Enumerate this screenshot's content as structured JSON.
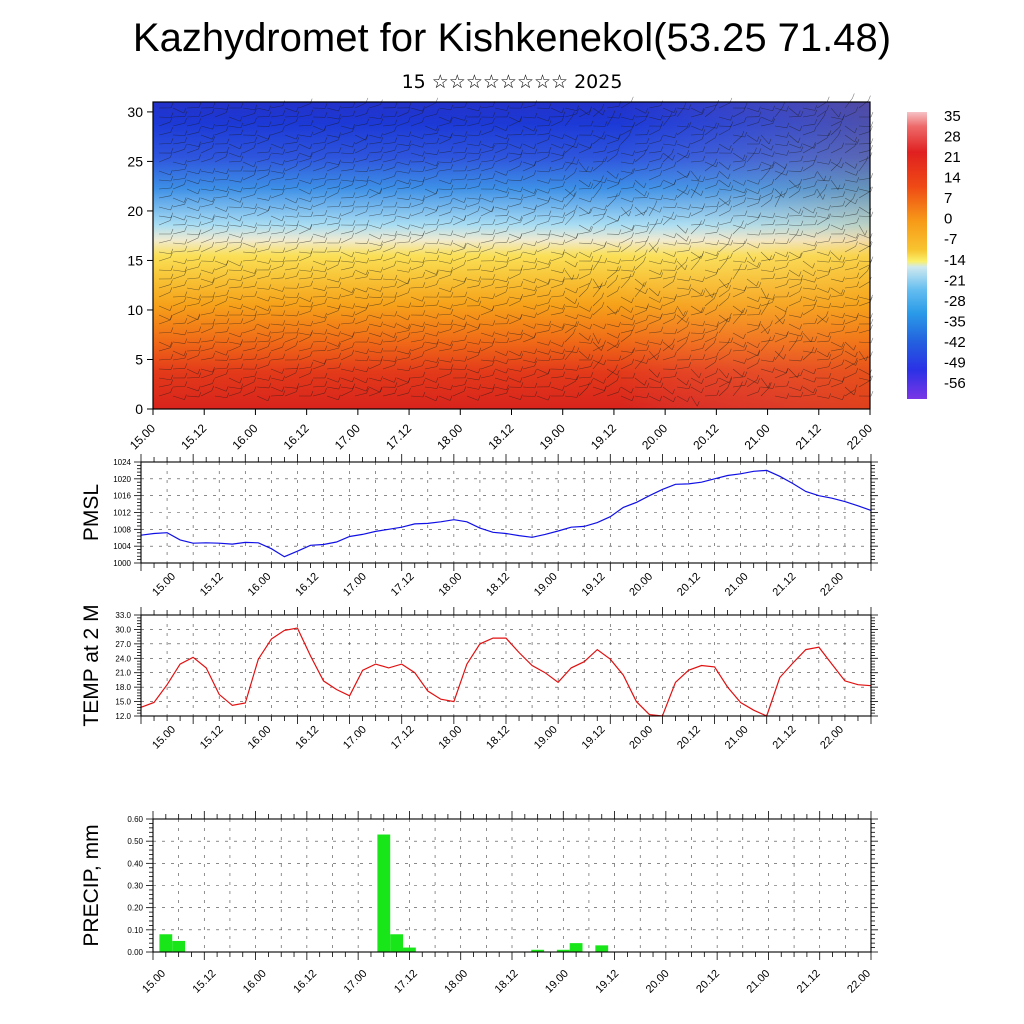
{
  "header": {
    "title": "Kazhydromet for Kishkenekol(53.25 71.48)",
    "subtitle": "15 ☆☆☆☆☆☆☆☆ 2025"
  },
  "chart_data": [
    {
      "type": "heatmap",
      "name": "cross-section",
      "x_tick_labels": [
        "15.00",
        "15.12",
        "16.00",
        "16.12",
        "17.00",
        "17.12",
        "18.00",
        "18.12",
        "19.00",
        "19.12",
        "20.00",
        "20.12",
        "21.00",
        "21.12",
        "22.00"
      ],
      "y_tick_labels": [
        "0",
        "5",
        "10",
        "15",
        "20",
        "25",
        "30"
      ],
      "ylim": [
        0,
        31
      ],
      "legend_labels": [
        "35",
        "28",
        "21",
        "14",
        "7",
        "0",
        "-7",
        "-14",
        "-21",
        "-28",
        "-35",
        "-42",
        "-49",
        "-56"
      ],
      "legend_placement": "right",
      "colors": {
        "hot": "#e02a1e",
        "warm": "#f6a21a",
        "mild": "#fae057",
        "cool": "#a9ddf3",
        "cold": "#2855db",
        "coldest": "#6a2fe6"
      }
    },
    {
      "type": "line",
      "name": "pmsl",
      "ylabel": "PMSL",
      "y_tick_labels": [
        "1000",
        "1004",
        "1008",
        "1012",
        "1016",
        "1020",
        "1024"
      ],
      "ylim": [
        1000,
        1024
      ],
      "x_tick_labels": [
        "15.00",
        "15.12",
        "16.00",
        "16.12",
        "17.00",
        "17.12",
        "18.00",
        "18.12",
        "19.00",
        "19.12",
        "20.00",
        "20.12",
        "21.00",
        "21.12",
        "22.00"
      ],
      "x": [
        0,
        3,
        6,
        9,
        12,
        15,
        18,
        21,
        24,
        27,
        30,
        33,
        36,
        39,
        42,
        45,
        48,
        51,
        54,
        57,
        60,
        63,
        66,
        69,
        72,
        75,
        78,
        81,
        84,
        87,
        90,
        93,
        96,
        99,
        102,
        105,
        108,
        111,
        114,
        117,
        120,
        123,
        126,
        129,
        132,
        135,
        138,
        141,
        144,
        147,
        150,
        153,
        156,
        159,
        162,
        165,
        168
      ],
      "values": [
        1006.6,
        1007.0,
        1007.2,
        1005.5,
        1004.7,
        1004.8,
        1004.7,
        1004.5,
        1004.9,
        1004.8,
        1003.4,
        1001.5,
        1002.8,
        1004.2,
        1004.4,
        1005.0,
        1006.3,
        1006.8,
        1007.5,
        1008.0,
        1008.5,
        1009.3,
        1009.4,
        1009.8,
        1010.3,
        1009.8,
        1008.3,
        1007.3,
        1007.0,
        1006.5,
        1006.1,
        1006.8,
        1007.6,
        1008.5,
        1008.7,
        1009.6,
        1011.0,
        1013.2,
        1014.4,
        1016.0,
        1017.5,
        1018.7,
        1018.8,
        1019.2,
        1020.0,
        1020.8,
        1021.2,
        1021.8,
        1022.0,
        1020.6,
        1018.9,
        1017.0,
        1016.0,
        1015.4,
        1014.6,
        1013.6,
        1012.5
      ],
      "color": "#1010e6"
    },
    {
      "type": "line",
      "name": "temp2m",
      "ylabel": "TEMP at 2 M",
      "y_tick_labels": [
        "12.0",
        "15.0",
        "18.0",
        "21.0",
        "24.0",
        "27.0",
        "30.0",
        "33.0"
      ],
      "ylim": [
        12,
        33
      ],
      "x_tick_labels": [
        "15.00",
        "15.12",
        "16.00",
        "16.12",
        "17.00",
        "17.12",
        "18.00",
        "18.12",
        "19.00",
        "19.12",
        "20.00",
        "20.12",
        "21.00",
        "21.12",
        "22.00"
      ],
      "x": [
        0,
        3,
        6,
        9,
        12,
        15,
        18,
        21,
        24,
        27,
        30,
        33,
        36,
        39,
        42,
        45,
        48,
        51,
        54,
        57,
        60,
        63,
        66,
        69,
        72,
        75,
        78,
        81,
        84,
        87,
        90,
        93,
        96,
        99,
        102,
        105,
        108,
        111,
        114,
        117,
        120,
        123,
        126,
        129,
        132,
        135,
        138,
        141,
        144,
        147,
        150,
        153,
        156,
        159,
        162,
        165,
        168
      ],
      "values": [
        13.8,
        14.8,
        18.5,
        22.8,
        24.2,
        22.0,
        16.5,
        14.2,
        14.7,
        23.8,
        28.0,
        29.8,
        30.3,
        24.5,
        19.3,
        17.5,
        16.2,
        21.5,
        22.8,
        22.0,
        22.8,
        21.0,
        17.2,
        15.5,
        15.0,
        22.8,
        27.0,
        28.2,
        28.2,
        25.2,
        22.5,
        21.0,
        19.0,
        22.0,
        23.3,
        25.8,
        23.8,
        20.5,
        15.0,
        12.3,
        12.0,
        19.0,
        21.5,
        22.5,
        22.2,
        18.0,
        14.8,
        13.2,
        12.0,
        20.0,
        23.0,
        25.8,
        26.3,
        22.8,
        19.3,
        18.5,
        18.3
      ],
      "color": "#e01010"
    },
    {
      "type": "bar",
      "name": "precip",
      "ylabel": "PRECIP, mm",
      "y_tick_labels": [
        "0.00",
        "0.10",
        "0.20",
        "0.30",
        "0.40",
        "0.50",
        "0.60"
      ],
      "ylim": [
        0,
        0.6
      ],
      "x_tick_labels": [
        "15.00",
        "15.12",
        "16.00",
        "16.12",
        "17.00",
        "17.12",
        "18.00",
        "18.12",
        "19.00",
        "19.12",
        "20.00",
        "20.12",
        "21.00",
        "21.12",
        "22.00"
      ],
      "x": [
        3,
        6,
        54,
        57,
        60,
        90,
        96,
        99,
        105
      ],
      "values": [
        0.08,
        0.05,
        0.53,
        0.08,
        0.02,
        0.01,
        0.01,
        0.04,
        0.03
      ],
      "color": "#19e619"
    }
  ]
}
